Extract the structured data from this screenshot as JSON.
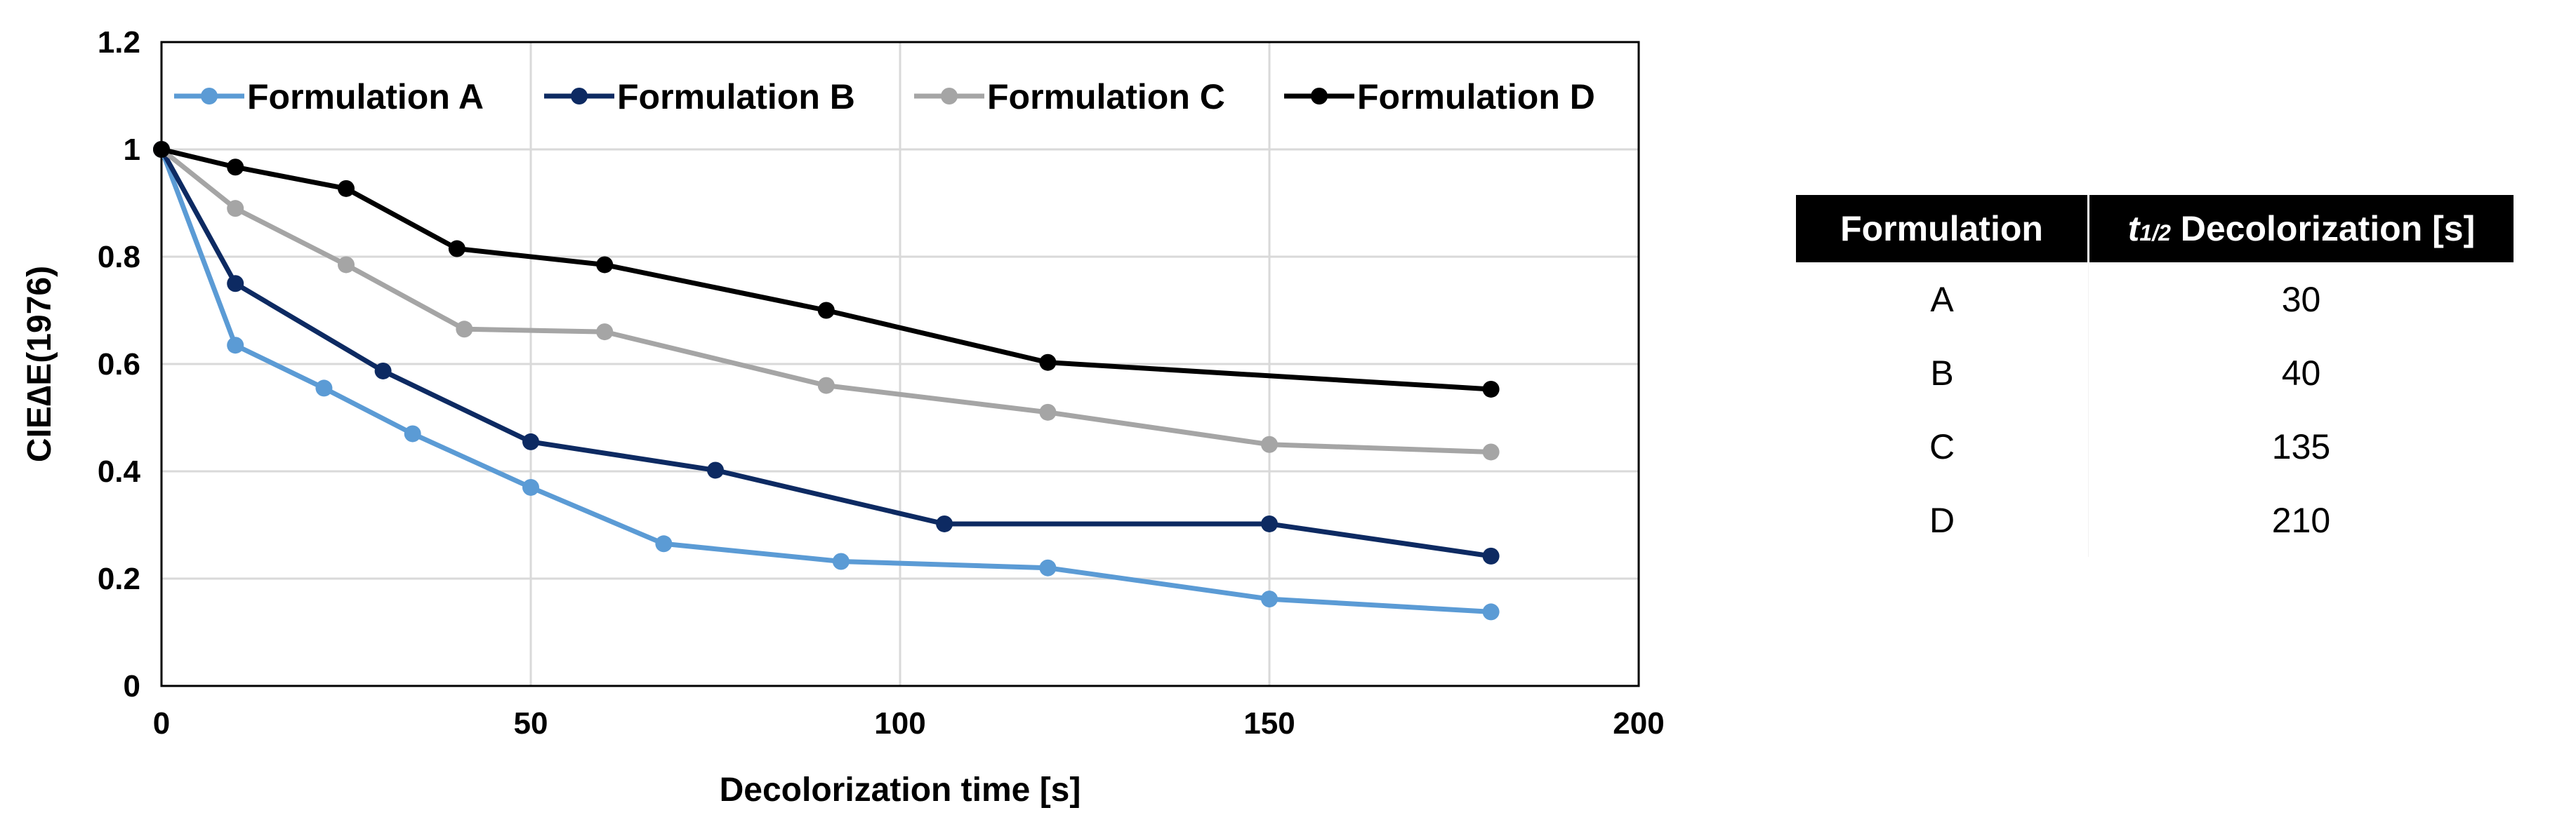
{
  "chart_data": {
    "type": "line",
    "title": "",
    "xlabel": "Decolorization time [s]",
    "ylabel": "CIE∆E(1976)",
    "xlim": [
      0,
      200
    ],
    "ylim": [
      0,
      1.2
    ],
    "x_ticks": [
      "0",
      "50",
      "100",
      "150",
      "200"
    ],
    "y_ticks": [
      "0",
      "0.2",
      "0.4",
      "0.6",
      "0.8",
      "1",
      "1.2"
    ],
    "grid": true,
    "legend_position": "top",
    "series": [
      {
        "name": "Formulation A",
        "color": "#5B9BD5",
        "points": [
          [
            0,
            1.0
          ],
          [
            10,
            0.635
          ],
          [
            22,
            0.555
          ],
          [
            34,
            0.47
          ],
          [
            50,
            0.37
          ],
          [
            68,
            0.265
          ],
          [
            92,
            0.232
          ],
          [
            120,
            0.22
          ],
          [
            150,
            0.162
          ],
          [
            180,
            0.138
          ]
        ]
      },
      {
        "name": "Formulation B",
        "color": "#0D2A62",
        "points": [
          [
            0,
            1.0
          ],
          [
            10,
            0.75
          ],
          [
            30,
            0.587
          ],
          [
            50,
            0.455
          ],
          [
            75,
            0.402
          ],
          [
            106,
            0.302
          ],
          [
            150,
            0.302
          ],
          [
            180,
            0.242
          ]
        ]
      },
      {
        "name": "Formulation C",
        "color": "#A5A5A5",
        "points": [
          [
            0,
            1.0
          ],
          [
            10,
            0.89
          ],
          [
            25,
            0.785
          ],
          [
            41,
            0.665
          ],
          [
            60,
            0.66
          ],
          [
            90,
            0.56
          ],
          [
            120,
            0.51
          ],
          [
            150,
            0.45
          ],
          [
            180,
            0.436
          ]
        ]
      },
      {
        "name": "Formulation D",
        "color": "#000000",
        "points": [
          [
            0,
            1.0
          ],
          [
            10,
            0.967
          ],
          [
            25,
            0.927
          ],
          [
            40,
            0.815
          ],
          [
            60,
            0.785
          ],
          [
            90,
            0.7
          ],
          [
            120,
            0.603
          ],
          [
            180,
            0.553
          ]
        ]
      }
    ]
  },
  "table": {
    "headers": {
      "formulation": "Formulation",
      "t_symbol": "t",
      "t_subscript": "1/2",
      "t_rest": " Decolorization [s]"
    },
    "rows": [
      {
        "formulation": "A",
        "value": "30"
      },
      {
        "formulation": "B",
        "value": "40"
      },
      {
        "formulation": "C",
        "value": "135"
      },
      {
        "formulation": "D",
        "value": "210"
      }
    ]
  }
}
